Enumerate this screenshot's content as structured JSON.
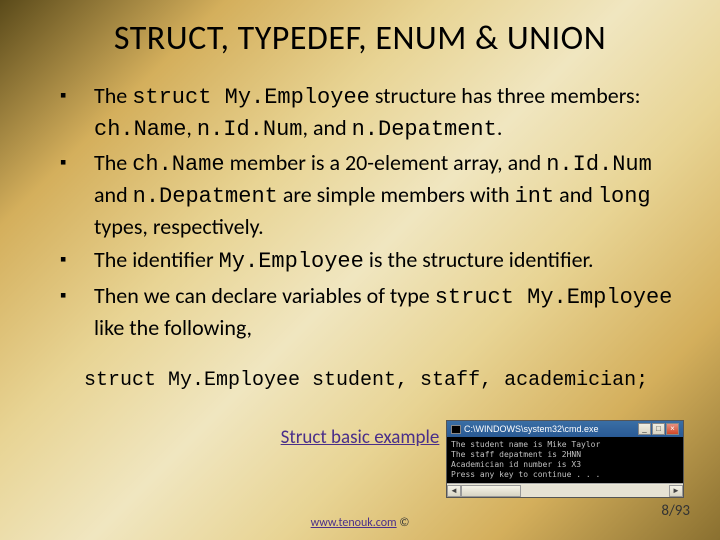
{
  "title": "STRUCT, TYPEDEF, ENUM & UNION",
  "bullets": [
    {
      "pre": "The ",
      "c1": "struct My.Employee",
      "mid1": " structure has three members: ",
      "c2": "ch.Name",
      "mid2": ", ",
      "c3": "n.Id.Num",
      "mid3": ", and ",
      "c4": "n.Depatment",
      "post": "."
    },
    {
      "pre": "The ",
      "c1": "ch.Name",
      "mid1": " member is a 20-element array, and ",
      "c2": "n.Id.Num",
      "mid2": " and ",
      "c3": "n.Depatment",
      "mid3": " are simple members with ",
      "c4": "int",
      "mid4": " and ",
      "c5": "long",
      "post": " types, respectively."
    },
    {
      "pre": "The identifier ",
      "c1": "My.Employee",
      "post": " is the structure identifier."
    },
    {
      "pre": "Then we can declare variables of type ",
      "c1": "struct My.Employee",
      "post": " like the following,"
    }
  ],
  "codeLine": "struct My.Employee student, staff, academician;",
  "exampleLink": "Struct basic example",
  "footerUrl": "www.tenouk.com",
  "footerSuffix": " ©",
  "pageNum": "8/93",
  "cmd": {
    "title": "C:\\WINDOWS\\system32\\cmd.exe",
    "lines": "The student name is Mike Taylor\nThe staff depatment is 2HNN\nAcademician id number is X3\nPress any key to continue . . ."
  }
}
